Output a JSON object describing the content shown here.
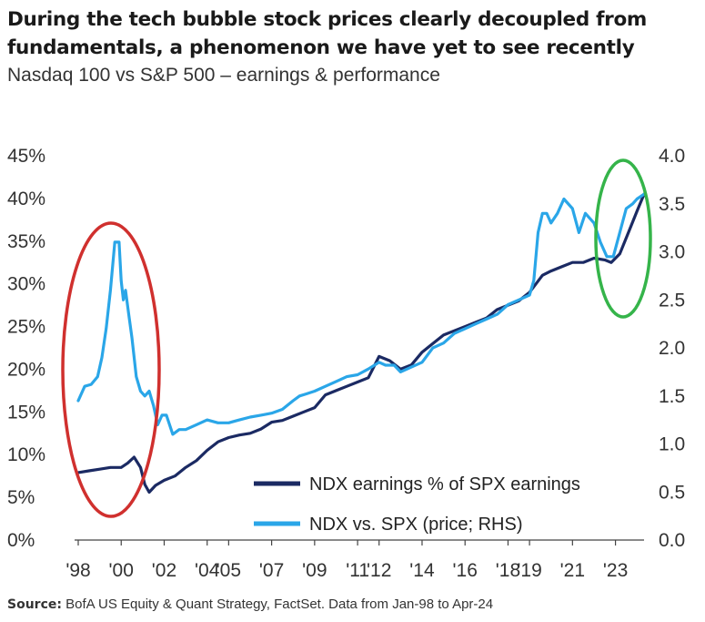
{
  "title": "During the tech bubble stock prices clearly decoupled from fundamentals, a phenomenon we have yet to see recently",
  "subtitle": "Nasdaq 100 vs S&P 500 – earnings & performance",
  "source_label": "Source:",
  "source_text": "BofA US Equity & Quant Strategy, FactSet. Data from Jan-98 to Apr-24",
  "colors": {
    "earnings": "#1b2a63",
    "price": "#2aa6e8",
    "bubble_circle": "#d0302e",
    "recent_circle": "#35b44a"
  },
  "chart_data": {
    "type": "line",
    "title": "",
    "x_tick_labels": [
      "'98",
      "'00",
      "'02",
      "'04",
      "'05",
      "'07",
      "'09",
      "'11",
      "'12",
      "'14",
      "'16",
      "'18",
      "'19",
      "'21",
      "'23"
    ],
    "x_tick_years": [
      1998,
      2000,
      2002,
      2004,
      2005,
      2007,
      2009,
      2011,
      2012,
      2014,
      2016,
      2018,
      2019,
      2021,
      2023
    ],
    "xlim": [
      1998.0,
      2024.33
    ],
    "y_left": {
      "ticks": [
        "0%",
        "5%",
        "10%",
        "15%",
        "20%",
        "25%",
        "30%",
        "35%",
        "40%",
        "45%"
      ],
      "range": [
        0,
        45
      ]
    },
    "y_right": {
      "ticks": [
        "0.0",
        "0.5",
        "1.0",
        "1.5",
        "2.0",
        "2.5",
        "3.0",
        "3.5",
        "4.0"
      ],
      "range": [
        0,
        4
      ]
    },
    "legend_position": "bottom-right",
    "series": [
      {
        "name": "NDX earnings % of SPX earnings",
        "axis": "left",
        "x": [
          1998.0,
          1998.5,
          1999.0,
          1999.5,
          2000.0,
          2000.3,
          2000.6,
          2000.9,
          2001.1,
          2001.3,
          2001.6,
          2002.0,
          2002.5,
          2003.0,
          2003.5,
          2004.0,
          2004.5,
          2005.0,
          2005.5,
          2006.0,
          2006.5,
          2007.0,
          2007.5,
          2008.0,
          2008.5,
          2009.0,
          2009.5,
          2010.0,
          2010.5,
          2011.0,
          2011.5,
          2012.0,
          2012.5,
          2013.0,
          2013.5,
          2014.0,
          2014.5,
          2015.0,
          2015.5,
          2016.0,
          2016.5,
          2017.0,
          2017.5,
          2018.0,
          2018.5,
          2019.0,
          2019.3,
          2019.6,
          2020.0,
          2020.5,
          2021.0,
          2021.5,
          2022.0,
          2022.5,
          2022.8,
          2023.2,
          2023.6,
          2024.0,
          2024.33
        ],
        "values": [
          7.9,
          8.1,
          8.3,
          8.5,
          8.5,
          9.0,
          9.7,
          8.5,
          6.5,
          5.6,
          6.4,
          7.0,
          7.5,
          8.5,
          9.3,
          10.5,
          11.5,
          12.0,
          12.3,
          12.5,
          13.0,
          13.8,
          14.0,
          14.5,
          15.0,
          15.5,
          17.0,
          17.5,
          18.0,
          18.5,
          19.0,
          21.5,
          21.0,
          20.0,
          20.5,
          22.0,
          23.0,
          24.0,
          24.5,
          25.0,
          25.5,
          26.0,
          27.0,
          27.5,
          28.0,
          29.0,
          30.0,
          31.0,
          31.5,
          32.0,
          32.5,
          32.5,
          33.0,
          32.8,
          32.5,
          33.5,
          36.0,
          38.5,
          40.5
        ]
      },
      {
        "name": "NDX vs. SPX (price; RHS)",
        "axis": "right",
        "x": [
          1998.0,
          1998.3,
          1998.6,
          1998.9,
          1999.1,
          1999.3,
          1999.5,
          1999.7,
          1999.9,
          2000.0,
          2000.1,
          2000.2,
          2000.35,
          2000.5,
          2000.7,
          2000.9,
          2001.1,
          2001.3,
          2001.5,
          2001.7,
          2001.9,
          2002.1,
          2002.4,
          2002.7,
          2003.0,
          2003.5,
          2004.0,
          2004.5,
          2005.0,
          2005.5,
          2006.0,
          2006.5,
          2007.0,
          2007.5,
          2008.0,
          2008.3,
          2008.6,
          2009.0,
          2009.5,
          2010.0,
          2010.5,
          2011.0,
          2011.5,
          2012.0,
          2012.3,
          2012.7,
          2013.0,
          2013.5,
          2014.0,
          2014.5,
          2015.0,
          2015.5,
          2016.0,
          2016.5,
          2017.0,
          2017.5,
          2018.0,
          2018.5,
          2019.0,
          2019.2,
          2019.4,
          2019.6,
          2019.8,
          2020.0,
          2020.3,
          2020.6,
          2021.0,
          2021.3,
          2021.6,
          2022.0,
          2022.3,
          2022.6,
          2022.9,
          2023.2,
          2023.5,
          2023.8,
          2024.0,
          2024.33
        ],
        "values": [
          1.45,
          1.6,
          1.62,
          1.7,
          1.9,
          2.2,
          2.6,
          3.1,
          3.1,
          2.7,
          2.5,
          2.6,
          2.35,
          2.1,
          1.7,
          1.55,
          1.5,
          1.55,
          1.4,
          1.2,
          1.3,
          1.3,
          1.1,
          1.15,
          1.15,
          1.2,
          1.25,
          1.22,
          1.22,
          1.25,
          1.28,
          1.3,
          1.32,
          1.36,
          1.45,
          1.5,
          1.52,
          1.55,
          1.6,
          1.65,
          1.7,
          1.72,
          1.78,
          1.85,
          1.82,
          1.82,
          1.75,
          1.8,
          1.85,
          2.0,
          2.05,
          2.15,
          2.2,
          2.25,
          2.3,
          2.35,
          2.45,
          2.5,
          2.55,
          2.7,
          3.2,
          3.4,
          3.4,
          3.3,
          3.4,
          3.55,
          3.45,
          3.2,
          3.4,
          3.3,
          3.1,
          2.95,
          2.95,
          3.2,
          3.45,
          3.5,
          3.55,
          3.6
        ]
      }
    ]
  }
}
